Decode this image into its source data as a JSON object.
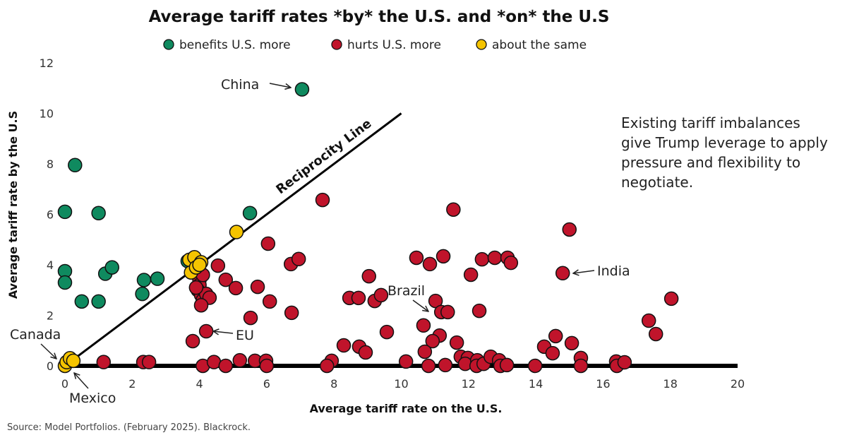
{
  "chart_data": {
    "type": "scatter",
    "title": "Average tariff rates *by* the U.S. and *on* the U.S",
    "xlabel": "Average tariff rate on the U.S.",
    "ylabel": "Average tariff rate by the U.S",
    "xlim": [
      0,
      20
    ],
    "ylim": [
      0,
      12
    ],
    "xticks": [
      "0",
      "2",
      "4",
      "6",
      "8",
      "10",
      "12",
      "14",
      "16",
      "18",
      "20"
    ],
    "yticks": [
      "0",
      "2",
      "4",
      "6",
      "8",
      "10",
      "12"
    ],
    "grid": false,
    "legend_position": "top",
    "reference_line": {
      "label": "Reciprocity Line",
      "from": [
        0,
        0
      ],
      "to": [
        10,
        10
      ]
    },
    "series": [
      {
        "name": "benefits U.S. more",
        "color": "#0f8a5f",
        "points": [
          [
            0,
            3.75
          ],
          [
            0,
            3.3
          ],
          [
            0,
            6.1
          ],
          [
            0.3,
            7.95
          ],
          [
            1.0,
            6.05
          ],
          [
            0.5,
            2.55
          ],
          [
            1.0,
            2.55
          ],
          [
            1.2,
            3.65
          ],
          [
            1.4,
            3.9
          ],
          [
            2.35,
            3.4
          ],
          [
            2.3,
            2.85
          ],
          [
            2.75,
            3.45
          ],
          [
            3.65,
            4.15
          ],
          [
            5.5,
            6.05
          ],
          [
            7.05,
            10.95
          ]
        ]
      },
      {
        "name": "hurts U.S. more",
        "color": "#c0142b",
        "points": [
          [
            4.55,
            3.97
          ],
          [
            4.78,
            3.41
          ],
          [
            5.08,
            3.08
          ],
          [
            5.73,
            3.13
          ],
          [
            6.04,
            4.84
          ],
          [
            6.09,
            2.55
          ],
          [
            5.52,
            1.9
          ],
          [
            6.74,
            2.1
          ],
          [
            6.72,
            4.03
          ],
          [
            6.95,
            4.23
          ],
          [
            7.66,
            6.57
          ],
          [
            4.2,
            1.37
          ],
          [
            3.8,
            0.98
          ],
          [
            4.0,
            3.4
          ],
          [
            4.0,
            3.2
          ],
          [
            3.95,
            3.0
          ],
          [
            4.05,
            2.8
          ],
          [
            4.1,
            2.6
          ],
          [
            4.2,
            2.85
          ],
          [
            4.3,
            2.7
          ],
          [
            4.05,
            2.4
          ],
          [
            3.9,
            3.1
          ],
          [
            4.1,
            3.6
          ],
          [
            1.15,
            0.15
          ],
          [
            2.33,
            0.15
          ],
          [
            2.5,
            0.15
          ],
          [
            4.1,
            0.0
          ],
          [
            4.43,
            0.15
          ],
          [
            4.78,
            0.0
          ],
          [
            5.2,
            0.22
          ],
          [
            5.65,
            0.2
          ],
          [
            5.98,
            0.2
          ],
          [
            6.0,
            0.0
          ],
          [
            11.55,
            6.19
          ],
          [
            15.0,
            5.4
          ],
          [
            10.45,
            4.28
          ],
          [
            10.85,
            4.03
          ],
          [
            11.25,
            4.34
          ],
          [
            12.4,
            4.22
          ],
          [
            12.78,
            4.28
          ],
          [
            13.16,
            4.28
          ],
          [
            13.26,
            4.08
          ],
          [
            12.07,
            3.61
          ],
          [
            14.8,
            3.67
          ],
          [
            9.04,
            3.55
          ],
          [
            8.46,
            2.69
          ],
          [
            8.73,
            2.69
          ],
          [
            9.21,
            2.57
          ],
          [
            9.4,
            2.8
          ],
          [
            11.02,
            2.57
          ],
          [
            11.19,
            2.13
          ],
          [
            11.38,
            2.13
          ],
          [
            12.32,
            2.18
          ],
          [
            18.03,
            2.66
          ],
          [
            17.36,
            1.79
          ],
          [
            17.57,
            1.26
          ],
          [
            10.66,
            1.6
          ],
          [
            9.57,
            1.34
          ],
          [
            11.14,
            1.2
          ],
          [
            10.93,
            0.98
          ],
          [
            11.65,
            0.92
          ],
          [
            10.7,
            0.56
          ],
          [
            8.29,
            0.81
          ],
          [
            8.75,
            0.76
          ],
          [
            8.94,
            0.53
          ],
          [
            7.93,
            0.2
          ],
          [
            7.79,
            0.0
          ],
          [
            10.14,
            0.17
          ],
          [
            10.81,
            0.0
          ],
          [
            11.31,
            0.03
          ],
          [
            11.77,
            0.36
          ],
          [
            11.98,
            0.31
          ],
          [
            11.9,
            0.08
          ],
          [
            12.26,
            0.22
          ],
          [
            12.24,
            0.0
          ],
          [
            12.45,
            0.08
          ],
          [
            12.66,
            0.36
          ],
          [
            12.91,
            0.22
          ],
          [
            12.95,
            0.0
          ],
          [
            13.14,
            0.03
          ],
          [
            13.98,
            0.0
          ],
          [
            14.25,
            0.76
          ],
          [
            14.59,
            1.18
          ],
          [
            14.5,
            0.5
          ],
          [
            15.07,
            0.9
          ],
          [
            15.34,
            0.31
          ],
          [
            15.34,
            0.0
          ],
          [
            16.39,
            0.17
          ],
          [
            16.41,
            0.0
          ],
          [
            16.64,
            0.14
          ]
        ]
      },
      {
        "name": "about the same",
        "color": "#f5c400",
        "points": [
          [
            0,
            0
          ],
          [
            0.05,
            0.15
          ],
          [
            0.15,
            0.3
          ],
          [
            0.25,
            0.2
          ],
          [
            5.1,
            5.3
          ],
          [
            3.7,
            4.2
          ],
          [
            3.85,
            4.3
          ],
          [
            4.05,
            4.1
          ],
          [
            3.75,
            3.7
          ],
          [
            3.9,
            3.9
          ],
          [
            4.0,
            4.0
          ]
        ]
      }
    ],
    "annotations": [
      {
        "label": "China",
        "point": [
          7.05,
          10.95
        ]
      },
      {
        "label": "India",
        "point": [
          14.8,
          3.67
        ]
      },
      {
        "label": "Brazil",
        "point": [
          11.19,
          2.13
        ]
      },
      {
        "label": "EU",
        "point": [
          4.2,
          1.37
        ]
      },
      {
        "label": "Canada",
        "point": [
          0,
          0
        ]
      },
      {
        "label": "Mexico",
        "point": [
          0.2,
          0
        ]
      }
    ]
  },
  "note": [
    "Existing tariff imbalances",
    "give Trump leverage to apply",
    "pressure and flexibility to",
    "negotiate."
  ],
  "source": "Source: Model Portfolios. (February 2025). Blackrock."
}
